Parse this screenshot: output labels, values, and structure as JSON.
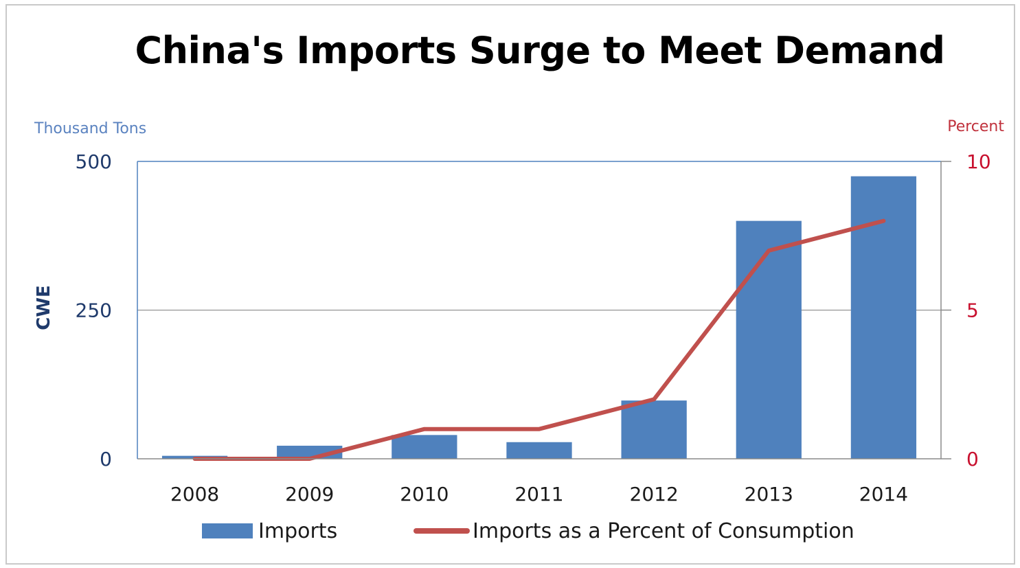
{
  "chart_data": {
    "type": "bar",
    "title": "China's Imports Surge to Meet Demand",
    "categories": [
      "2008",
      "2009",
      "2010",
      "2011",
      "2012",
      "2013",
      "2014"
    ],
    "series": [
      {
        "name": "Imports",
        "kind": "bar",
        "axis": "left",
        "color": "#4f81bd",
        "values": [
          5,
          22,
          40,
          28,
          98,
          400,
          475
        ]
      },
      {
        "name": "Imports as a Percent of Consumption",
        "kind": "line",
        "axis": "right",
        "color": "#c0504d",
        "values": [
          0,
          0,
          1,
          1,
          2,
          7,
          8
        ]
      }
    ],
    "left_axis": {
      "unit_label": "Thousand Tons",
      "label": "CWE",
      "range": [
        0,
        500
      ],
      "ticks": [
        "0",
        "250",
        "500"
      ],
      "color": "#1f3a6b"
    },
    "right_axis": {
      "unit_label": "Percent",
      "range": [
        0,
        10
      ],
      "ticks": [
        "0",
        "5",
        "10"
      ],
      "color": "#c8102e"
    },
    "grid": true,
    "legend_position": "bottom"
  }
}
